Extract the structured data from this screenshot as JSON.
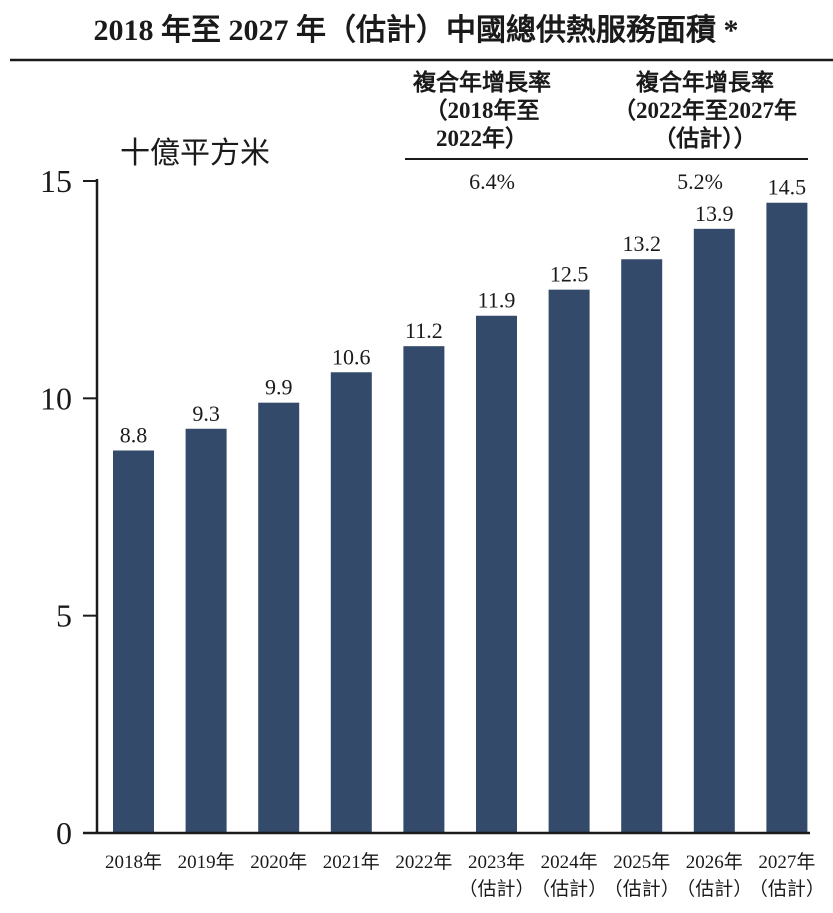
{
  "chart_data": {
    "type": "bar",
    "title": "2018 年至 2027 年（估計）中國總供熱服務面積 *",
    "ylabel": "十億平方米",
    "xlabel": "",
    "ylim": [
      0,
      15
    ],
    "yticks": [
      "0",
      "5",
      "10",
      "15"
    ],
    "grid": false,
    "categories": [
      [
        "2018年",
        ""
      ],
      [
        "2019年",
        ""
      ],
      [
        "2020年",
        ""
      ],
      [
        "2021年",
        ""
      ],
      [
        "2022年",
        ""
      ],
      [
        "2023年",
        "（估計）"
      ],
      [
        "2024年",
        "（估計）"
      ],
      [
        "2025年",
        "（估計）"
      ],
      [
        "2026年",
        "（估計）"
      ],
      [
        "2027年",
        "（估計）"
      ]
    ],
    "values": [
      8.8,
      9.3,
      9.9,
      10.6,
      11.2,
      11.9,
      12.5,
      13.2,
      13.9,
      14.5
    ],
    "value_labels": [
      "8.8",
      "9.3",
      "9.9",
      "10.6",
      "11.2",
      "11.9",
      "12.5",
      "13.2",
      "13.9",
      "14.5"
    ],
    "bar_color": "#344a6b",
    "cagr": [
      {
        "lines": [
          "複合年增長率",
          "（2018年至",
          "2022年）"
        ],
        "value": "6.4%"
      },
      {
        "lines": [
          "複合年增長率",
          "（2022年至2027年",
          "（估計））"
        ],
        "value": "5.2%"
      }
    ]
  }
}
